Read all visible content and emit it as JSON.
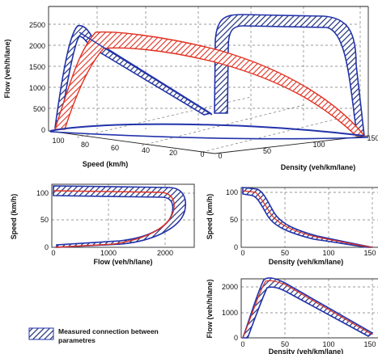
{
  "legend": {
    "line1": "Measured connection between",
    "line2": "parametres",
    "swatch_color": "#1f2f7a"
  },
  "colors": {
    "measured_edge": "#2233aa",
    "measured_hatch": "#1f2f7a",
    "model": "#e03020",
    "grid": "#666666"
  },
  "chart_data": [
    {
      "type": "line",
      "projection": "3d",
      "xlabel": "Speed (km/h)",
      "ylabel": "Density (veh/km/lane)",
      "zlabel": "Flow (veh/h/lane)",
      "speed_ticks": [
        "100",
        "80",
        "60",
        "40",
        "20",
        "0"
      ],
      "density_ticks": [
        "0",
        "50",
        "100",
        "150"
      ],
      "flow_ticks": [
        "0",
        "500",
        "1000",
        "1500",
        "2000",
        "2500"
      ],
      "xlim": [
        0,
        110
      ],
      "ylim": [
        0,
        150
      ],
      "zlim": [
        0,
        2500
      ],
      "grid": true,
      "series": [
        {
          "values": [
            [
              105,
              0,
              0
            ],
            [
              103,
              10,
              1030
            ],
            [
              100,
              20,
              2000
            ],
            [
              90,
              28,
              2500
            ],
            [
              70,
              42,
              2200
            ],
            [
              40,
              78,
              1700
            ],
            [
              20,
              110,
              1200
            ],
            [
              8,
              135,
              700
            ],
            [
              0,
              150,
              0
            ]
          ]
        },
        {
          "values": [
            [
              104,
              0,
              0
            ],
            [
              100,
              22,
              2200
            ],
            [
              88,
              28,
              2350
            ],
            [
              60,
              48,
              2050
            ],
            [
              30,
              85,
              1650
            ],
            [
              12,
              115,
              1050
            ],
            [
              0,
              150,
              0
            ]
          ]
        }
      ]
    },
    {
      "type": "line",
      "xlabel": "Flow (veh/h/lane)",
      "ylabel": "Speed (km/h)",
      "xticks": [
        "0",
        "1000",
        "2000"
      ],
      "yticks": [
        "0",
        "50",
        "100"
      ],
      "xlim": [
        0,
        2500
      ],
      "ylim": [
        0,
        115
      ],
      "grid": true,
      "series": [
        {
          "values": [
            [
              0,
              107
            ],
            [
              1000,
              106
            ],
            [
              1800,
              104
            ],
            [
              2300,
              100
            ],
            [
              2450,
              85
            ],
            [
              2300,
              60
            ],
            [
              1800,
              30
            ],
            [
              1000,
              10
            ],
            [
              0,
              0
            ]
          ]
        },
        {
          "values": [
            [
              0,
              104
            ],
            [
              1000,
              103
            ],
            [
              1800,
              101
            ],
            [
              2200,
              98
            ],
            [
              2300,
              80
            ],
            [
              2150,
              55
            ],
            [
              1700,
              25
            ],
            [
              1000,
              8
            ],
            [
              0,
              0
            ]
          ]
        }
      ]
    },
    {
      "type": "line",
      "xlabel": "Density (veh/km/lane)",
      "ylabel": "Speed (km/h)",
      "xticks": [
        "0",
        "50",
        "100",
        "150"
      ],
      "yticks": [
        "0",
        "50",
        "100"
      ],
      "xlim": [
        0,
        150
      ],
      "ylim": [
        0,
        115
      ],
      "grid": true,
      "series": [
        {
          "values": [
            [
              0,
              110
            ],
            [
              18,
              106
            ],
            [
              28,
              88
            ],
            [
              40,
              58
            ],
            [
              60,
              35
            ],
            [
              90,
              18
            ],
            [
              120,
              7
            ],
            [
              150,
              0
            ]
          ]
        },
        {
          "values": [
            [
              0,
              104
            ],
            [
              20,
              100
            ],
            [
              30,
              80
            ],
            [
              45,
              50
            ],
            [
              65,
              30
            ],
            [
              95,
              14
            ],
            [
              125,
              5
            ],
            [
              150,
              0
            ]
          ]
        }
      ]
    },
    {
      "type": "line",
      "xlabel": "Density (veh/km/lane)",
      "ylabel": "Flow (veh/h/lane)",
      "xticks": [
        "0",
        "50",
        "100",
        "150"
      ],
      "yticks": [
        "0",
        "1000",
        "2000"
      ],
      "xlim": [
        0,
        150
      ],
      "ylim": [
        0,
        2600
      ],
      "grid": true,
      "series": [
        {
          "values": [
            [
              0,
              0
            ],
            [
              10,
              1050
            ],
            [
              20,
              2050
            ],
            [
              28,
              2420
            ],
            [
              45,
              2150
            ],
            [
              70,
              1750
            ],
            [
              100,
              1150
            ],
            [
              130,
              550
            ],
            [
              150,
              0
            ]
          ]
        },
        {
          "values": [
            [
              0,
              0
            ],
            [
              20,
              1950
            ],
            [
              27,
              2280
            ],
            [
              42,
              2040
            ],
            [
              65,
              1680
            ],
            [
              95,
              1080
            ],
            [
              125,
              480
            ],
            [
              150,
              0
            ]
          ]
        }
      ]
    }
  ]
}
